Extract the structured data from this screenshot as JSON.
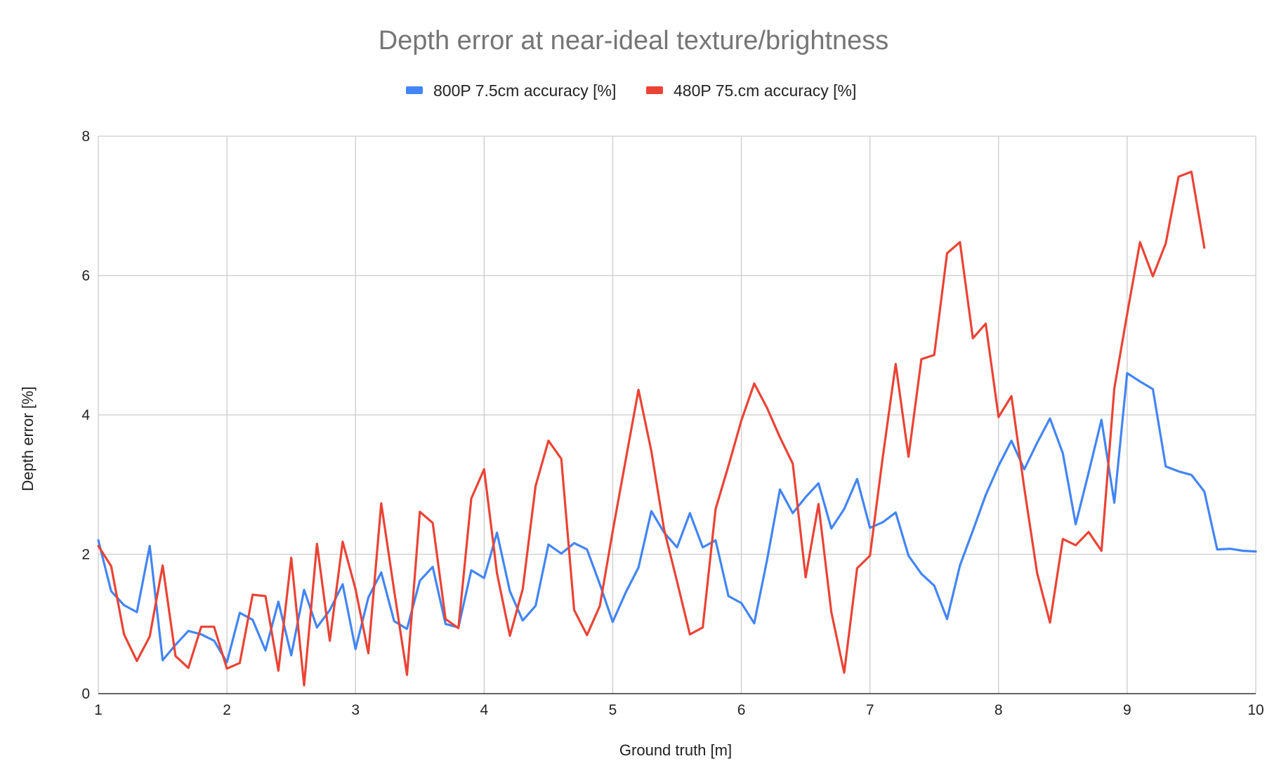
{
  "chart_data": {
    "type": "line",
    "title": "Depth error at near-ideal texture/brightness",
    "xlabel": "Ground truth [m]",
    "ylabel": "Depth error [%]",
    "xlim": [
      1,
      10
    ],
    "ylim": [
      0,
      8
    ],
    "x_ticks": [
      1,
      2,
      3,
      4,
      5,
      6,
      7,
      8,
      9,
      10
    ],
    "y_ticks": [
      0,
      2,
      4,
      6,
      8
    ],
    "grid": true,
    "legend_position": "top",
    "series": [
      {
        "name": "800P 7.5cm accuracy [%]",
        "color": "#4285f4",
        "x": [
          1.0,
          1.1,
          1.2,
          1.3,
          1.4,
          1.5,
          1.6,
          1.7,
          1.8,
          1.9,
          2.0,
          2.1,
          2.2,
          2.3,
          2.4,
          2.5,
          2.6,
          2.7,
          2.8,
          2.9,
          3.0,
          3.1,
          3.2,
          3.3,
          3.4,
          3.5,
          3.6,
          3.7,
          3.8,
          3.9,
          4.0,
          4.1,
          4.2,
          4.3,
          4.4,
          4.5,
          4.6,
          4.7,
          4.8,
          4.9,
          5.0,
          5.1,
          5.2,
          5.3,
          5.4,
          5.5,
          5.6,
          5.7,
          5.8,
          5.9,
          6.0,
          6.1,
          6.2,
          6.3,
          6.4,
          6.5,
          6.6,
          6.7,
          6.8,
          6.9,
          7.0,
          7.1,
          7.2,
          7.3,
          7.4,
          7.5,
          7.6,
          7.7,
          7.8,
          7.9,
          8.0,
          8.1,
          8.2,
          8.3,
          8.4,
          8.5,
          8.6,
          8.7,
          8.8,
          8.9,
          9.0,
          9.1,
          9.2,
          9.3,
          9.4,
          9.5,
          9.6,
          9.7,
          9.8,
          9.9,
          10.0
        ],
        "values": [
          2.2,
          1.47,
          1.27,
          1.17,
          2.12,
          0.48,
          0.7,
          0.9,
          0.85,
          0.76,
          0.45,
          1.16,
          1.06,
          0.62,
          1.32,
          0.55,
          1.49,
          0.95,
          1.2,
          1.57,
          0.64,
          1.38,
          1.74,
          1.04,
          0.93,
          1.62,
          1.82,
          1.0,
          0.95,
          1.77,
          1.66,
          2.31,
          1.47,
          1.05,
          1.26,
          2.14,
          2.01,
          2.16,
          2.07,
          1.57,
          1.03,
          1.45,
          1.81,
          2.62,
          2.31,
          2.1,
          2.59,
          2.1,
          2.2,
          1.4,
          1.3,
          1.01,
          1.92,
          2.93,
          2.59,
          2.82,
          3.02,
          2.37,
          2.65,
          3.08,
          2.38,
          2.46,
          2.6,
          1.98,
          1.72,
          1.55,
          1.07,
          1.84,
          2.34,
          2.85,
          3.27,
          3.63,
          3.22,
          3.6,
          3.95,
          3.45,
          2.43,
          3.17,
          3.93,
          2.74,
          4.6,
          4.48,
          4.37,
          3.26,
          3.19,
          3.14,
          2.9,
          2.07,
          2.08,
          2.05,
          2.04
        ]
      },
      {
        "name": "480P 75.cm accuracy [%]",
        "color": "#ea4335",
        "x": [
          1.0,
          1.1,
          1.2,
          1.3,
          1.4,
          1.5,
          1.6,
          1.7,
          1.8,
          1.9,
          2.0,
          2.1,
          2.2,
          2.3,
          2.4,
          2.5,
          2.6,
          2.7,
          2.8,
          2.9,
          3.0,
          3.1,
          3.2,
          3.3,
          3.4,
          3.5,
          3.6,
          3.7,
          3.8,
          3.9,
          4.0,
          4.1,
          4.2,
          4.3,
          4.4,
          4.5,
          4.6,
          4.7,
          4.8,
          4.9,
          5.0,
          5.1,
          5.2,
          5.3,
          5.4,
          5.5,
          5.6,
          5.7,
          5.8,
          5.9,
          6.0,
          6.1,
          6.2,
          6.3,
          6.4,
          6.5,
          6.6,
          6.7,
          6.8,
          6.9,
          7.0,
          7.1,
          7.2,
          7.3,
          7.4,
          7.5,
          7.6,
          7.7,
          7.8,
          7.9,
          8.0,
          8.1,
          8.2,
          8.3,
          8.4,
          8.5,
          8.6,
          8.7,
          8.8,
          8.9,
          9.0,
          9.1,
          9.2,
          9.3,
          9.4,
          9.5,
          9.6
        ],
        "values": [
          2.12,
          1.83,
          0.85,
          0.47,
          0.82,
          1.84,
          0.54,
          0.37,
          0.96,
          0.96,
          0.36,
          0.44,
          1.42,
          1.4,
          0.33,
          1.95,
          0.12,
          2.15,
          0.76,
          2.18,
          1.5,
          0.58,
          2.73,
          1.48,
          0.27,
          2.61,
          2.45,
          1.07,
          0.94,
          2.8,
          3.22,
          1.73,
          0.83,
          1.5,
          2.98,
          3.63,
          3.37,
          1.2,
          0.84,
          1.26,
          2.33,
          3.35,
          4.36,
          3.48,
          2.35,
          1.61,
          0.85,
          0.95,
          2.65,
          3.27,
          3.92,
          4.45,
          4.1,
          3.68,
          3.3,
          1.67,
          2.72,
          1.17,
          0.3,
          1.8,
          1.98,
          3.4,
          4.73,
          3.4,
          4.8,
          4.86,
          6.32,
          6.48,
          5.1,
          5.31,
          3.97,
          4.27,
          2.95,
          1.73,
          1.02,
          2.22,
          2.13,
          2.32,
          2.05,
          4.38,
          5.45,
          6.48,
          5.99,
          6.46,
          7.42,
          7.49,
          6.4
        ]
      }
    ]
  }
}
